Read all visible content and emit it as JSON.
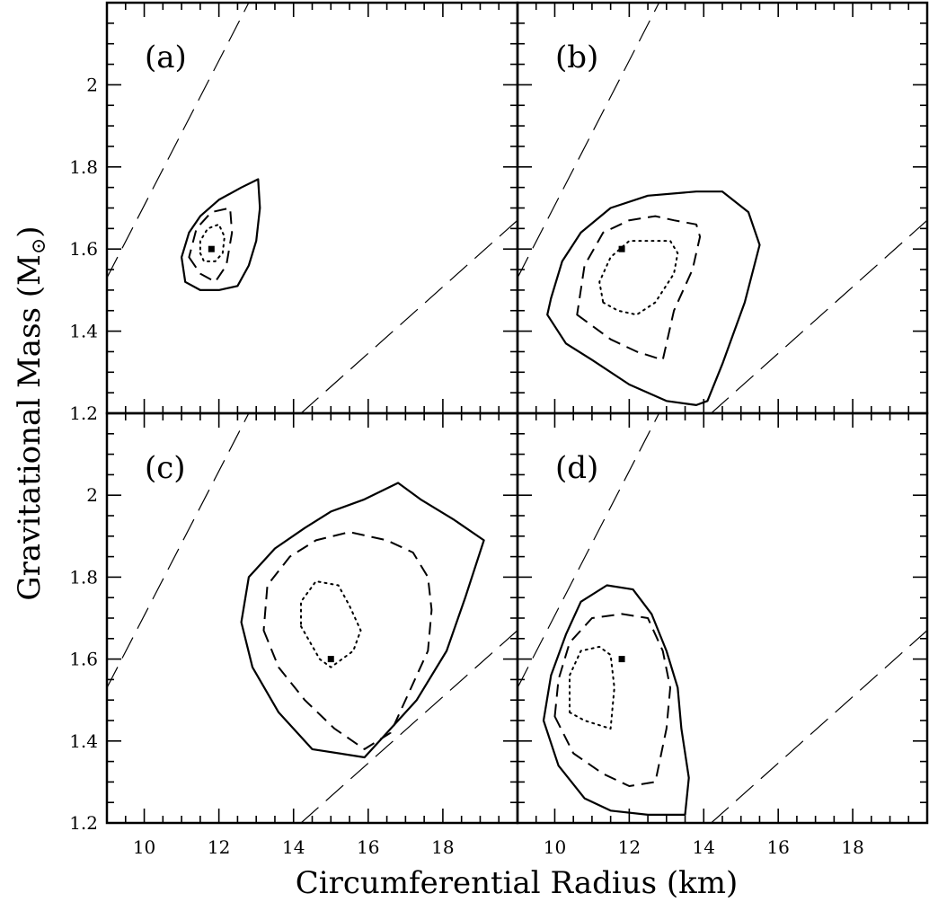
{
  "chart_data": {
    "type": "line",
    "xlabel": "Circumferential Radius (km)",
    "ylabel_main": "Gravitational Mass (M",
    "ylabel_sub": "⊙",
    "ylabel_close": ")",
    "xlim": [
      9,
      20
    ],
    "ylim": [
      1.2,
      2.2
    ],
    "x_ticks": [
      10,
      12,
      14,
      16,
      18
    ],
    "y_ticks": [
      1.2,
      1.4,
      1.6,
      1.8,
      2
    ],
    "x_tick_labels": [
      "10",
      "12",
      "14",
      "16",
      "18"
    ],
    "y_tick_labels": [
      "1.2",
      "1.4",
      "1.6",
      "1.8",
      "2"
    ],
    "grid": false,
    "guide_lines": [
      {
        "points": [
          [
            9,
            1.53
          ],
          [
            12.8,
            2.2
          ]
        ]
      },
      {
        "points": [
          [
            14.2,
            1.2
          ],
          [
            20,
            1.67
          ]
        ]
      }
    ],
    "panels": [
      {
        "label": "(a)",
        "marker": [
          11.8,
          1.6
        ],
        "contours": [
          {
            "style": "solid",
            "points": [
              [
                11.0,
                1.58
              ],
              [
                11.1,
                1.52
              ],
              [
                11.5,
                1.5
              ],
              [
                12.0,
                1.5
              ],
              [
                12.5,
                1.51
              ],
              [
                12.8,
                1.56
              ],
              [
                13.0,
                1.62
              ],
              [
                13.1,
                1.7
              ],
              [
                13.05,
                1.77
              ],
              [
                12.6,
                1.75
              ],
              [
                12.0,
                1.72
              ],
              [
                11.5,
                1.68
              ],
              [
                11.2,
                1.64
              ]
            ]
          },
          {
            "style": "dashed",
            "points": [
              [
                11.2,
                1.58
              ],
              [
                11.5,
                1.54
              ],
              [
                11.9,
                1.52
              ],
              [
                12.2,
                1.56
              ],
              [
                12.35,
                1.64
              ],
              [
                12.3,
                1.7
              ],
              [
                11.8,
                1.69
              ],
              [
                11.4,
                1.65
              ]
            ]
          },
          {
            "style": "dotted",
            "points": [
              [
                11.5,
                1.59
              ],
              [
                11.6,
                1.57
              ],
              [
                11.9,
                1.57
              ],
              [
                12.1,
                1.59
              ],
              [
                12.15,
                1.63
              ],
              [
                12.0,
                1.66
              ],
              [
                11.7,
                1.65
              ],
              [
                11.5,
                1.62
              ]
            ]
          }
        ]
      },
      {
        "label": "(b)",
        "marker": [
          11.8,
          1.6
        ],
        "contours": [
          {
            "style": "solid",
            "points": [
              [
                9.9,
                1.48
              ],
              [
                9.8,
                1.44
              ],
              [
                10.3,
                1.37
              ],
              [
                11.0,
                1.33
              ],
              [
                12.0,
                1.27
              ],
              [
                13.0,
                1.23
              ],
              [
                13.8,
                1.22
              ],
              [
                14.1,
                1.23
              ],
              [
                14.5,
                1.32
              ],
              [
                15.1,
                1.47
              ],
              [
                15.5,
                1.61
              ],
              [
                15.2,
                1.69
              ],
              [
                14.5,
                1.74
              ],
              [
                13.8,
                1.74
              ],
              [
                12.5,
                1.73
              ],
              [
                11.5,
                1.7
              ],
              [
                10.7,
                1.64
              ],
              [
                10.2,
                1.57
              ]
            ]
          },
          {
            "style": "dashed",
            "points": [
              [
                10.6,
                1.44
              ],
              [
                11.5,
                1.38
              ],
              [
                12.2,
                1.35
              ],
              [
                12.9,
                1.33
              ],
              [
                13.2,
                1.45
              ],
              [
                13.7,
                1.55
              ],
              [
                13.9,
                1.63
              ],
              [
                13.8,
                1.66
              ],
              [
                13.2,
                1.67
              ],
              [
                12.7,
                1.68
              ],
              [
                12.0,
                1.67
              ],
              [
                11.3,
                1.64
              ],
              [
                10.8,
                1.56
              ]
            ]
          },
          {
            "style": "dotted",
            "points": [
              [
                11.3,
                1.47
              ],
              [
                11.7,
                1.45
              ],
              [
                12.2,
                1.44
              ],
              [
                12.7,
                1.47
              ],
              [
                13.2,
                1.54
              ],
              [
                13.3,
                1.59
              ],
              [
                13.1,
                1.62
              ],
              [
                12.6,
                1.62
              ],
              [
                12.0,
                1.62
              ],
              [
                11.5,
                1.58
              ],
              [
                11.2,
                1.52
              ]
            ]
          }
        ]
      },
      {
        "label": "(c)",
        "marker": [
          15.0,
          1.6
        ],
        "contours": [
          {
            "style": "solid",
            "points": [
              [
                12.6,
                1.69
              ],
              [
                12.9,
                1.58
              ],
              [
                13.6,
                1.47
              ],
              [
                14.5,
                1.38
              ],
              [
                15.9,
                1.36
              ],
              [
                16.5,
                1.42
              ],
              [
                17.3,
                1.5
              ],
              [
                18.1,
                1.62
              ],
              [
                18.6,
                1.75
              ],
              [
                19.1,
                1.89
              ],
              [
                18.3,
                1.94
              ],
              [
                17.4,
                1.99
              ],
              [
                16.8,
                2.03
              ],
              [
                15.9,
                1.99
              ],
              [
                15.0,
                1.96
              ],
              [
                14.3,
                1.92
              ],
              [
                13.5,
                1.87
              ],
              [
                12.8,
                1.8
              ]
            ]
          },
          {
            "style": "dashed",
            "points": [
              [
                13.2,
                1.67
              ],
              [
                13.6,
                1.58
              ],
              [
                14.3,
                1.5
              ],
              [
                15.1,
                1.43
              ],
              [
                15.9,
                1.38
              ],
              [
                16.6,
                1.42
              ],
              [
                17.1,
                1.52
              ],
              [
                17.6,
                1.62
              ],
              [
                17.7,
                1.72
              ],
              [
                17.6,
                1.8
              ],
              [
                17.2,
                1.86
              ],
              [
                16.5,
                1.89
              ],
              [
                15.5,
                1.91
              ],
              [
                14.6,
                1.89
              ],
              [
                13.9,
                1.85
              ],
              [
                13.3,
                1.78
              ]
            ]
          },
          {
            "style": "dotted",
            "points": [
              [
                14.2,
                1.68
              ],
              [
                14.7,
                1.6
              ],
              [
                15.0,
                1.58
              ],
              [
                15.6,
                1.62
              ],
              [
                15.8,
                1.67
              ],
              [
                15.5,
                1.73
              ],
              [
                15.2,
                1.78
              ],
              [
                14.6,
                1.79
              ],
              [
                14.2,
                1.74
              ]
            ]
          }
        ]
      },
      {
        "label": "(d)",
        "marker": [
          11.8,
          1.6
        ],
        "contours": [
          {
            "style": "solid",
            "points": [
              [
                9.7,
                1.45
              ],
              [
                10.1,
                1.34
              ],
              [
                10.8,
                1.26
              ],
              [
                11.5,
                1.23
              ],
              [
                12.5,
                1.22
              ],
              [
                13.5,
                1.22
              ],
              [
                13.6,
                1.31
              ],
              [
                13.4,
                1.43
              ],
              [
                13.3,
                1.53
              ],
              [
                13.0,
                1.62
              ],
              [
                12.6,
                1.71
              ],
              [
                12.1,
                1.77
              ],
              [
                11.4,
                1.78
              ],
              [
                10.7,
                1.74
              ],
              [
                10.3,
                1.66
              ],
              [
                9.9,
                1.56
              ]
            ]
          },
          {
            "style": "dashed",
            "points": [
              [
                10.0,
                1.46
              ],
              [
                10.5,
                1.37
              ],
              [
                11.3,
                1.32
              ],
              [
                12.0,
                1.29
              ],
              [
                12.7,
                1.3
              ],
              [
                13.0,
                1.43
              ],
              [
                13.1,
                1.53
              ],
              [
                12.9,
                1.62
              ],
              [
                12.5,
                1.7
              ],
              [
                11.8,
                1.71
              ],
              [
                11.0,
                1.7
              ],
              [
                10.4,
                1.64
              ],
              [
                10.1,
                1.55
              ]
            ]
          },
          {
            "style": "dotted",
            "points": [
              [
                10.4,
                1.47
              ],
              [
                10.8,
                1.45
              ],
              [
                11.5,
                1.43
              ],
              [
                11.6,
                1.53
              ],
              [
                11.5,
                1.61
              ],
              [
                11.2,
                1.63
              ],
              [
                10.7,
                1.62
              ],
              [
                10.4,
                1.56
              ]
            ]
          }
        ]
      }
    ]
  }
}
